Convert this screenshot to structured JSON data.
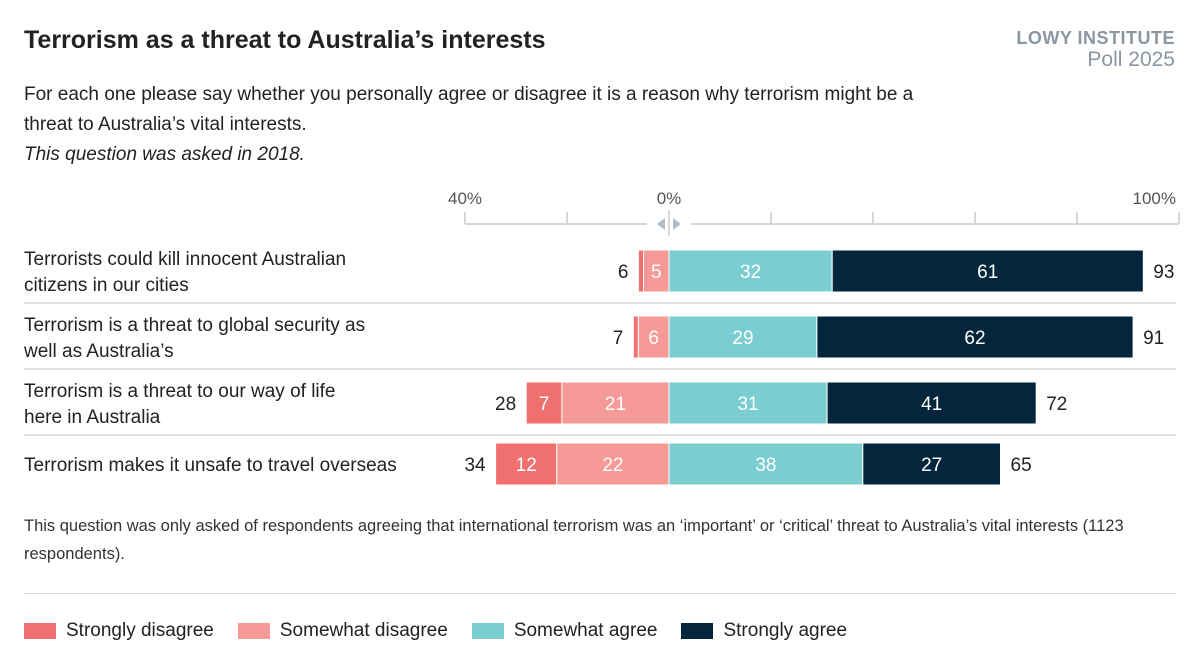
{
  "title": "Terrorism as a threat to Australia’s interests",
  "brand": {
    "line1": "LOWY INSTITUTE",
    "line2": "Poll 2025"
  },
  "subtitle": "For each one please say whether you personally agree or disagree it is a reason why terrorism might be a threat to Australia’s vital interests.",
  "subtitle_italic": "This question was asked in 2018.",
  "note": "This question was only asked of respondents agreeing that international terrorism was an ‘important’ or ‘critical’ threat to Australia’s vital interests (1123 respondents).",
  "chart_data": {
    "type": "bar",
    "orientation": "horizontal diverging stacked",
    "xlim": [
      -40,
      100
    ],
    "tick_labels": [
      "40%",
      "0%",
      "100%"
    ],
    "categories": [
      "Terrorists could kill innocent Australian citizens in our cities",
      "Terrorism is a threat to global security as well as Australia’s",
      "Terrorism is a threat to our way of life here in Australia",
      "Terrorism makes it unsafe to travel overseas"
    ],
    "series": [
      {
        "name": "Strongly disagree",
        "color": "#f07070",
        "values": [
          1,
          1,
          7,
          12
        ],
        "labels": [
          "",
          "",
          "7",
          "12"
        ]
      },
      {
        "name": "Somewhat disagree",
        "color": "#f59a96",
        "values": [
          5,
          6,
          21,
          22
        ],
        "labels": [
          "5",
          "6",
          "21",
          "22"
        ]
      },
      {
        "name": "Somewhat agree",
        "color": "#7acdd0",
        "values": [
          32,
          29,
          31,
          38
        ],
        "labels": [
          "32",
          "29",
          "31",
          "38"
        ]
      },
      {
        "name": "Strongly agree",
        "color": "#03263d",
        "values": [
          61,
          62,
          41,
          27
        ],
        "labels": [
          "61",
          "62",
          "41",
          "27"
        ]
      }
    ],
    "disagree_totals": [
      6,
      7,
      28,
      34
    ],
    "agree_totals": [
      93,
      91,
      72,
      65
    ],
    "legend": "bottom"
  }
}
